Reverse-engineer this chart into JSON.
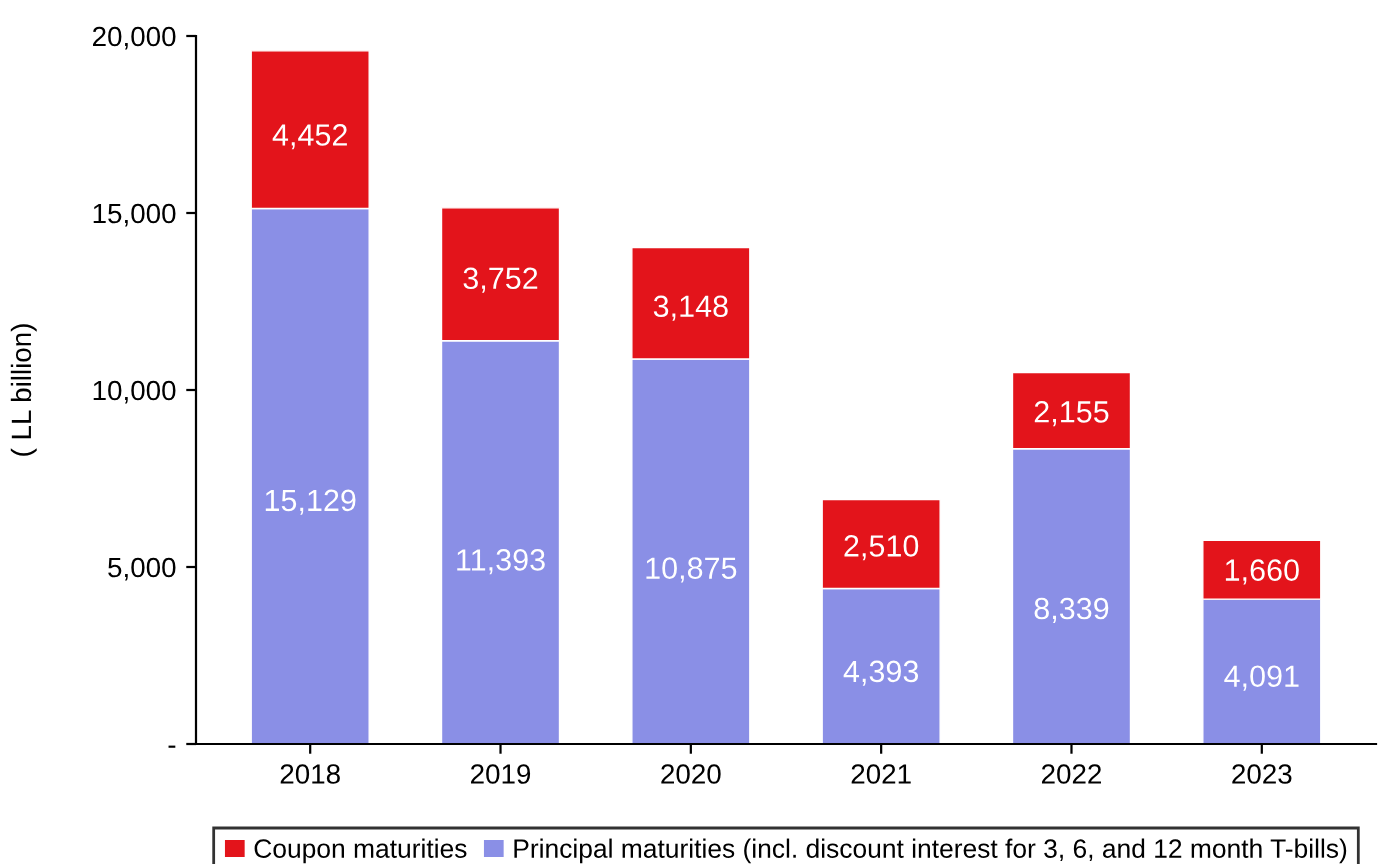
{
  "chart_data": {
    "type": "bar",
    "stacked": true,
    "ylabel": "( LL billion)",
    "categories": [
      "2018",
      "2019",
      "2020",
      "2021",
      "2022",
      "2023"
    ],
    "series": [
      {
        "name": "Principal maturities (incl. discount interest for 3, 6, and 12 month T-bills)",
        "color": "#8a8fe6",
        "values": [
          15129,
          11393,
          10875,
          4393,
          8339,
          4091
        ],
        "value_labels": [
          "15,129",
          "11,393",
          "10,875",
          "4,393",
          "8,339",
          "4,091"
        ]
      },
      {
        "name": "Coupon maturities",
        "color": "#e3141b",
        "values": [
          4452,
          3752,
          3148,
          2510,
          2155,
          1660
        ],
        "value_labels": [
          "4,452",
          "3,752",
          "3,148",
          "2,510",
          "2,155",
          "1,660"
        ]
      }
    ],
    "ylim": [
      0,
      20000
    ],
    "yticks": [
      {
        "value": 0,
        "label": "-"
      },
      {
        "value": 5000,
        "label": "5,000"
      },
      {
        "value": 10000,
        "label": "10,000"
      },
      {
        "value": 15000,
        "label": "15,000"
      },
      {
        "value": 20000,
        "label": "20,000"
      }
    ],
    "grid": false,
    "legend": "bottom"
  }
}
